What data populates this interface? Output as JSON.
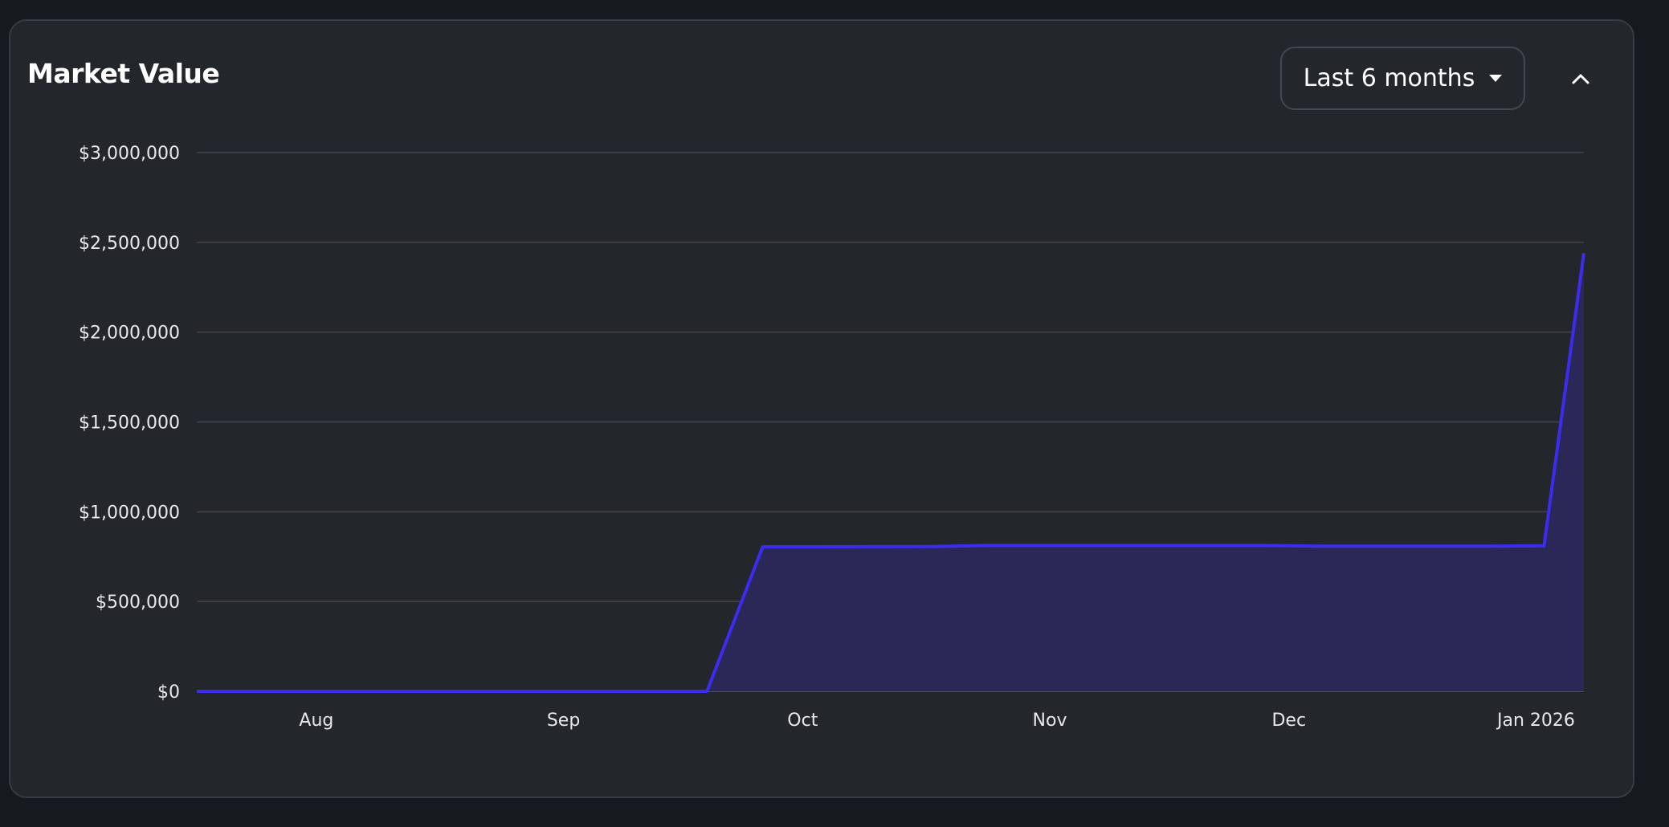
{
  "card": {
    "title": "Market Value",
    "range_selector": {
      "selected": "Last 6 months",
      "icon": "caret-down-icon"
    },
    "collapse_icon": "chevron-up-icon"
  },
  "colors": {
    "background": "#16191e",
    "card": "#23262b",
    "line": "#3d2cf0",
    "area_fill": "#2a2857",
    "grid": "#3b3e44"
  },
  "chart_data": {
    "type": "area",
    "title": "",
    "xlabel": "",
    "ylabel": "",
    "x_type": "date",
    "xlim": [
      "2025-07-17",
      "2026-01-07"
    ],
    "ylim": [
      0,
      3000000
    ],
    "grid": true,
    "legend": "none",
    "y_ticks": [
      0,
      500000,
      1000000,
      1500000,
      2000000,
      2500000,
      3000000
    ],
    "y_tick_labels": [
      "$0",
      "$500,000",
      "$1,000,000",
      "$1,500,000",
      "$2,000,000",
      "$2,500,000",
      "$3,000,000"
    ],
    "x_ticks": [
      "2025-08-01",
      "2025-09-01",
      "2025-10-01",
      "2025-11-01",
      "2025-12-01",
      "2026-01-01"
    ],
    "x_tick_labels": [
      "Aug",
      "Sep",
      "Oct",
      "Nov",
      "Dec",
      "Jan 2026"
    ],
    "series": [
      {
        "x": [
          "2025-07-17",
          "2025-09-19",
          "2025-09-26",
          "2025-10-17",
          "2025-10-24",
          "2025-11-28",
          "2025-12-05",
          "2025-12-26",
          "2026-01-02",
          "2026-01-07"
        ],
        "y": [
          0,
          0,
          805000,
          806000,
          812000,
          812000,
          808000,
          808000,
          810000,
          2440000
        ]
      }
    ]
  }
}
